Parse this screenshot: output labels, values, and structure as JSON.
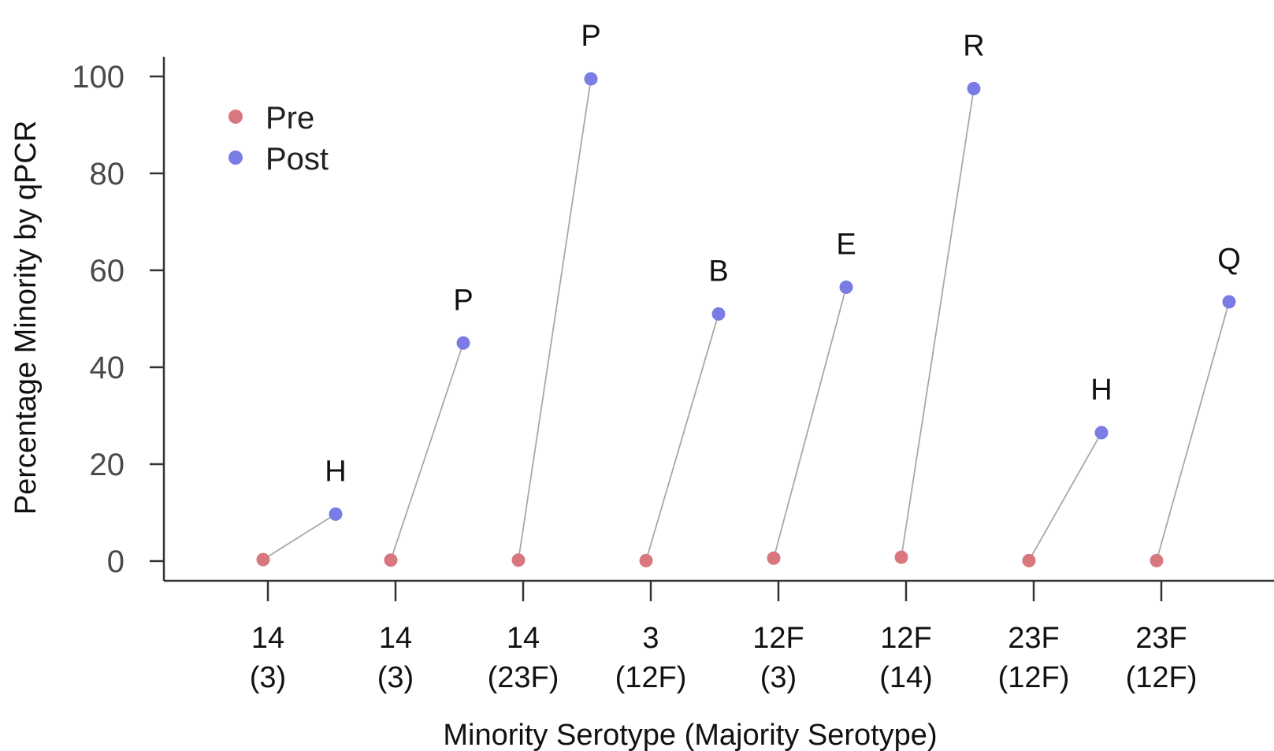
{
  "chart_data": {
    "type": "scatter",
    "title": "",
    "xlabel": "Minority Serotype (Majority Serotype)",
    "ylabel": "Percentage Minority by qPCR",
    "ylim": [
      0,
      100
    ],
    "yticks": [
      0,
      20,
      40,
      60,
      80,
      100
    ],
    "grid": false,
    "legend_position": "top-left",
    "categories": [
      {
        "minority": "14",
        "majority": "(3)"
      },
      {
        "minority": "14",
        "majority": "(3)"
      },
      {
        "minority": "14",
        "majority": "(23F)"
      },
      {
        "minority": "3",
        "majority": "(12F)"
      },
      {
        "minority": "12F",
        "majority": "(3)"
      },
      {
        "minority": "12F",
        "majority": "(14)"
      },
      {
        "minority": "23F",
        "majority": "(12F)"
      },
      {
        "minority": "23F",
        "majority": "(12F)"
      }
    ],
    "series": [
      {
        "name": "Pre",
        "color": "#d9777f",
        "values": [
          0.3,
          0.2,
          0.2,
          0.1,
          0.6,
          0.8,
          0.1,
          0.1
        ]
      },
      {
        "name": "Post",
        "color": "#7b7be6",
        "values": [
          9.7,
          45,
          99.5,
          51,
          56.5,
          97.5,
          26.5,
          53.5
        ]
      }
    ],
    "annotations": [
      "H",
      "P",
      "P",
      "B",
      "E",
      "R",
      "H",
      "Q"
    ],
    "connector_color": "#a8a8a8"
  }
}
